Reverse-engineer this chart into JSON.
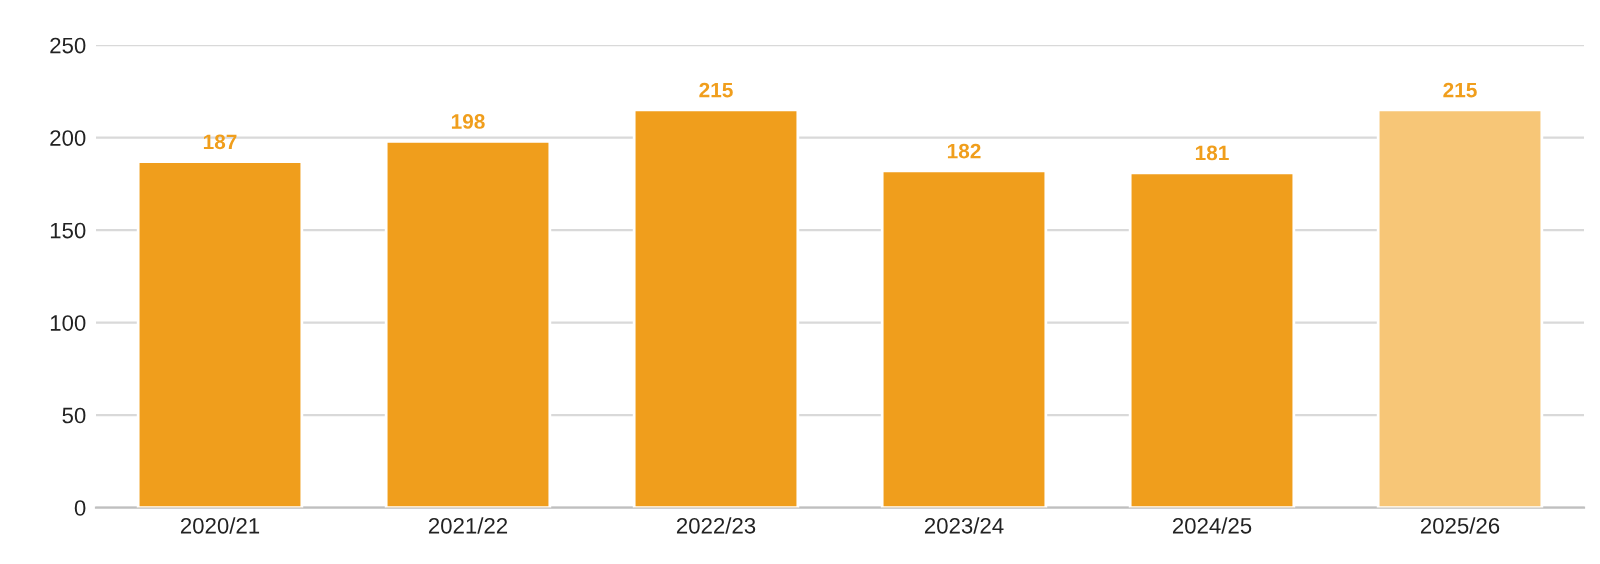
{
  "chart_data": {
    "type": "bar",
    "categories": [
      "2020/21",
      "2021/22",
      "2022/23",
      "2023/24",
      "2024/25",
      "2025/26"
    ],
    "values": [
      187,
      198,
      215,
      182,
      181,
      215
    ],
    "colors": [
      "#f09e1c",
      "#f09e1c",
      "#f09e1c",
      "#f09e1c",
      "#f09e1c",
      "#f7c677"
    ],
    "ylim": [
      0,
      250
    ],
    "yticks": [
      0,
      50,
      100,
      150,
      200,
      250
    ],
    "grid": "y",
    "data_labels": true
  }
}
